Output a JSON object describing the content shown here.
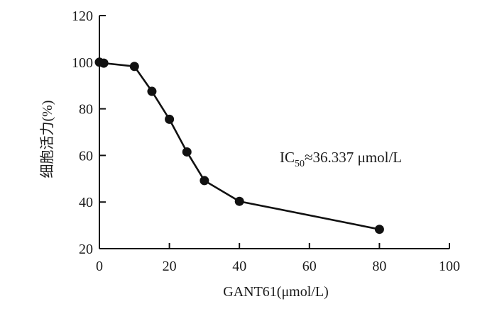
{
  "chart_data": {
    "type": "line",
    "title": "",
    "xlabel": "GANT61(μmol/L)",
    "ylabel": "细胞活力(%)",
    "xlim": [
      0,
      100
    ],
    "ylim": [
      20,
      120
    ],
    "xticks": [
      0,
      20,
      40,
      60,
      80,
      100
    ],
    "yticks": [
      20,
      40,
      60,
      80,
      100,
      120
    ],
    "grid": false,
    "legend": "none",
    "series": [
      {
        "x": [
          0,
          1.25,
          10,
          15,
          20,
          25,
          30,
          40,
          80
        ],
        "y": [
          100,
          99.6,
          98.2,
          87.5,
          75.5,
          61.5,
          49.2,
          40.3,
          28.3
        ],
        "color": "#111111",
        "marker": "circle"
      }
    ],
    "annotation": {
      "prefix": "IC",
      "subscript": "50",
      "suffix": "≈36.337 μmol/L"
    }
  }
}
